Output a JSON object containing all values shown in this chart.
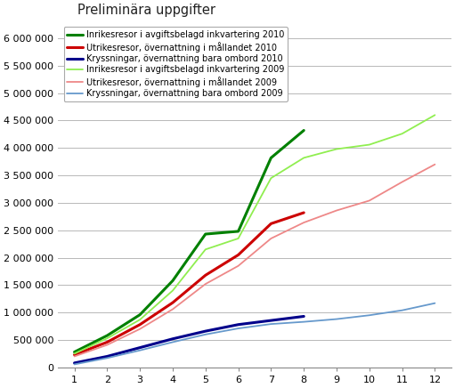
{
  "title": "Preliminära uppgifter",
  "series": [
    {
      "label": "Inrikesresor i avgiftsbelagd inkvartering 2010",
      "color": "#008000",
      "linewidth": 2.2,
      "x": [
        1,
        2,
        3,
        4,
        5,
        6,
        7,
        8
      ],
      "y": [
        280000,
        580000,
        960000,
        1580000,
        2430000,
        2480000,
        3820000,
        4320000
      ]
    },
    {
      "label": "Utrikesresor, övernattning i mållandet 2010",
      "color": "#cc0000",
      "linewidth": 2.2,
      "x": [
        1,
        2,
        3,
        4,
        5,
        6,
        7,
        8
      ],
      "y": [
        230000,
        460000,
        780000,
        1180000,
        1680000,
        2050000,
        2620000,
        2820000
      ]
    },
    {
      "label": "Kryssningar, övernattning bara ombord 2010",
      "color": "#00008b",
      "linewidth": 2.2,
      "x": [
        1,
        2,
        3,
        4,
        5,
        6,
        7,
        8
      ],
      "y": [
        80000,
        200000,
        360000,
        520000,
        660000,
        780000,
        855000,
        930000
      ]
    },
    {
      "label": "Inrikesresor i avgiftsbelagd inkvartering 2009",
      "color": "#90ee50",
      "linewidth": 1.3,
      "x": [
        1,
        2,
        3,
        4,
        5,
        6,
        7,
        8,
        9,
        10,
        11,
        12
      ],
      "y": [
        250000,
        530000,
        870000,
        1400000,
        2150000,
        2350000,
        3450000,
        3820000,
        3980000,
        4060000,
        4260000,
        4600000
      ]
    },
    {
      "label": "Utrikesresor, övernattning i mållandet 2009",
      "color": "#ee8888",
      "linewidth": 1.3,
      "x": [
        1,
        2,
        3,
        4,
        5,
        6,
        7,
        8,
        9,
        10,
        11,
        12
      ],
      "y": [
        200000,
        410000,
        700000,
        1060000,
        1520000,
        1850000,
        2350000,
        2640000,
        2860000,
        3040000,
        3380000,
        3700000
      ]
    },
    {
      "label": "Kryssningar, övernattning bara ombord 2009",
      "color": "#6699cc",
      "linewidth": 1.3,
      "x": [
        1,
        2,
        3,
        4,
        5,
        6,
        7,
        8,
        9,
        10,
        11,
        12
      ],
      "y": [
        55000,
        170000,
        310000,
        460000,
        600000,
        710000,
        790000,
        830000,
        880000,
        950000,
        1040000,
        1170000
      ]
    }
  ],
  "xlim": [
    0.5,
    12.5
  ],
  "ylim": [
    0,
    6300000
  ],
  "yticks": [
    0,
    500000,
    1000000,
    1500000,
    2000000,
    2500000,
    3000000,
    3500000,
    4000000,
    4500000,
    5000000,
    5500000,
    6000000
  ],
  "xticks": [
    1,
    2,
    3,
    4,
    5,
    6,
    7,
    8,
    9,
    10,
    11,
    12
  ],
  "background_color": "#ffffff",
  "grid_color": "#b8b8b8",
  "legend_fontsize": 7.0,
  "tick_fontsize": 8.0,
  "title_fontsize": 10.5
}
